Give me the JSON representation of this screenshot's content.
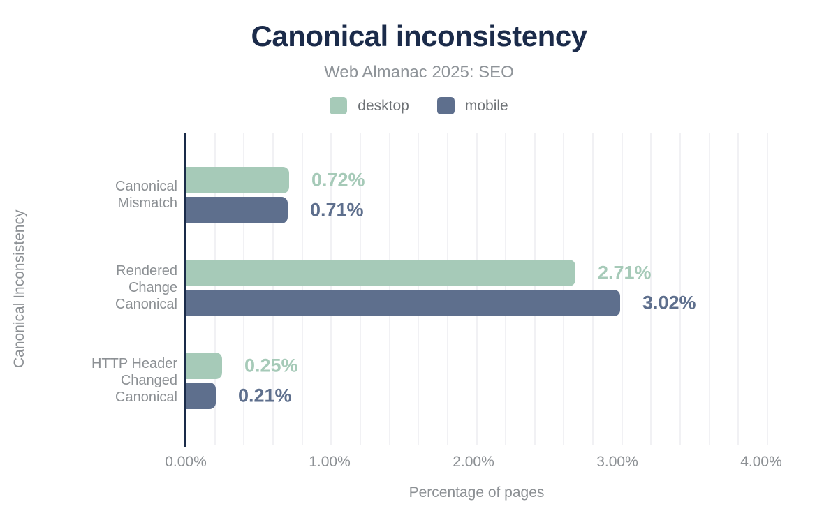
{
  "header": {
    "title": "Canonical inconsistency",
    "subtitle": "Web Almanac 2025: SEO"
  },
  "chart_data": {
    "type": "bar",
    "orientation": "horizontal",
    "title": "Canonical inconsistency",
    "subtitle": "Web Almanac 2025: SEO",
    "xlabel": "Percentage of pages",
    "ylabel": "Canonical Inconsistency",
    "xlim": [
      0,
      4.05
    ],
    "xticks": [
      0,
      1,
      2,
      3,
      4
    ],
    "xtick_labels": [
      "0.00%",
      "1.00%",
      "2.00%",
      "3.00%",
      "4.00%"
    ],
    "grid": "vertical minor gridlines every 0.2%",
    "legend_position": "top",
    "categories": [
      [
        "Canonical",
        "Mismatch"
      ],
      [
        "Rendered",
        "Change",
        "Canonical"
      ],
      [
        "HTTP Header",
        "Changed",
        "Canonical"
      ]
    ],
    "series": [
      {
        "name": "desktop",
        "color": "#a6cab8",
        "values": [
          0.72,
          2.71,
          0.25
        ]
      },
      {
        "name": "mobile",
        "color": "#5e6f8d",
        "values": [
          0.71,
          3.02,
          0.21
        ]
      }
    ],
    "value_label_format": "0.00%"
  }
}
